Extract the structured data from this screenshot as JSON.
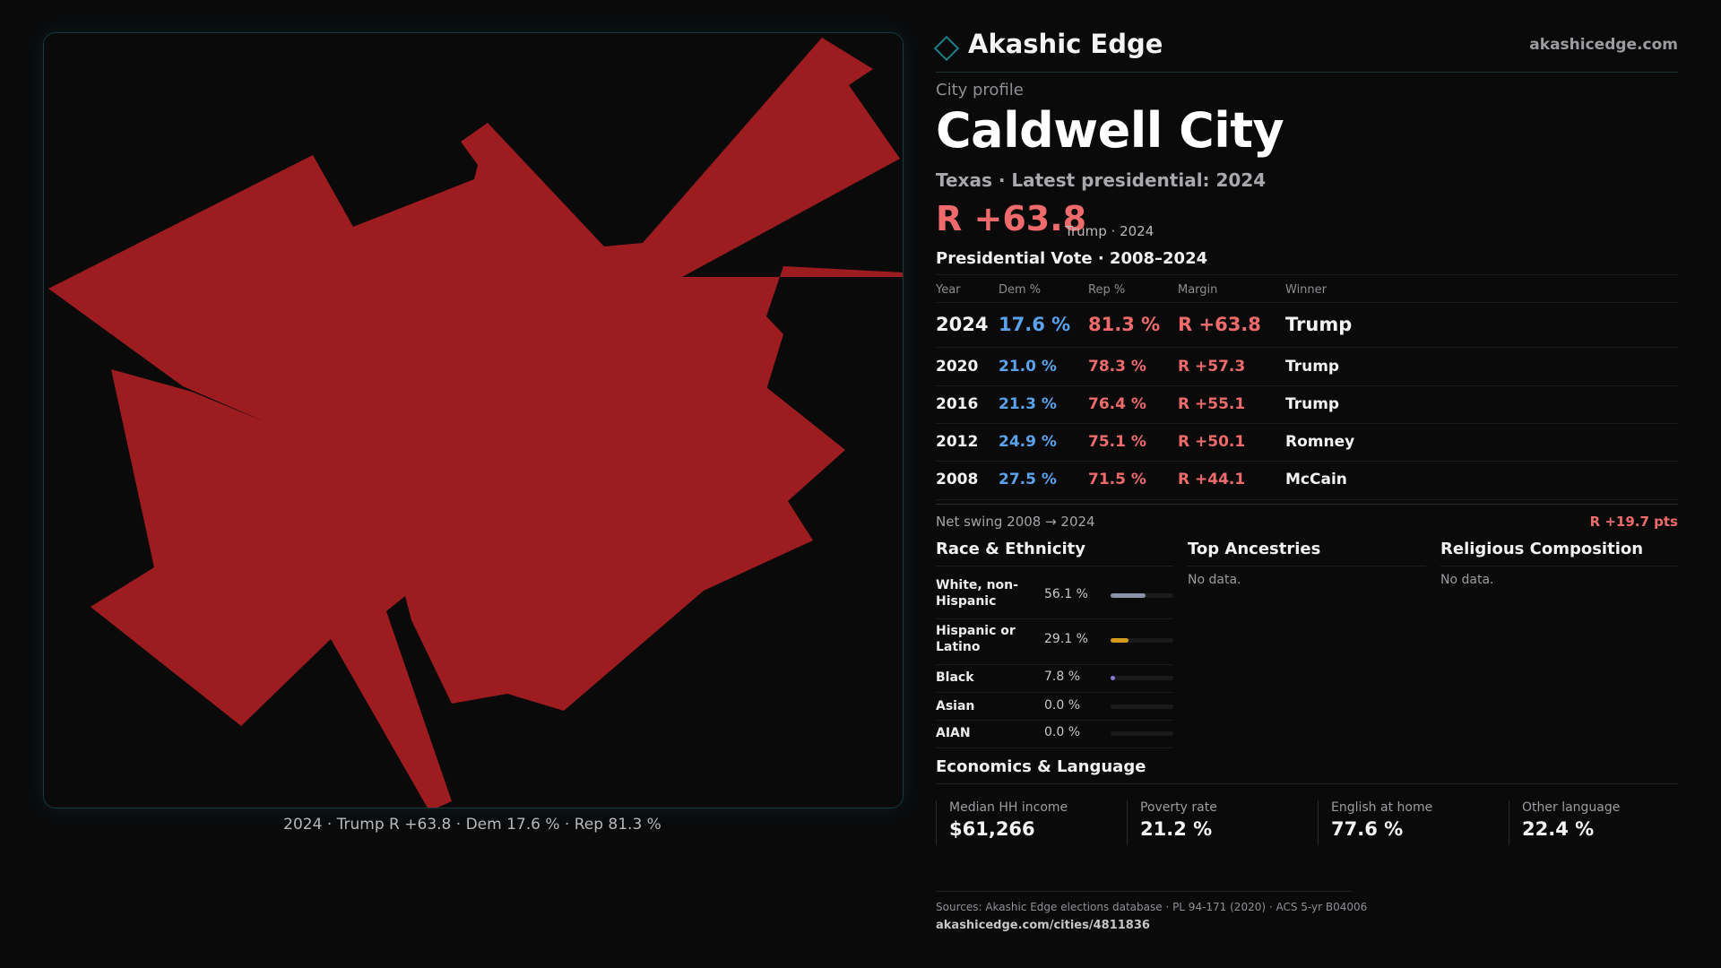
{
  "map": {
    "caption": "2024 · Trump R +63.8 · Dem 17.6 % · Rep 81.3 %",
    "fill_color": "#9c1c1f"
  },
  "brand": {
    "name": "Akashic Edge",
    "url": "akashicedge.com"
  },
  "profile": {
    "kicker": "City profile",
    "city": "Caldwell City",
    "subline": "Texas · Latest presidential: 2024",
    "margin": "R +63.8",
    "margin_note": "Trump · 2024"
  },
  "vote": {
    "title": "Presidential Vote · 2008–2024",
    "headers": {
      "year": "Year",
      "dem": "Dem %",
      "rep": "Rep %",
      "margin": "Margin",
      "winner": "Winner"
    },
    "rows": [
      {
        "year": "2024",
        "dem": "17.6 %",
        "rep": "81.3 %",
        "margin": "R +63.8",
        "winner": "Trump"
      },
      {
        "year": "2020",
        "dem": "21.0 %",
        "rep": "78.3 %",
        "margin": "R +57.3",
        "winner": "Trump"
      },
      {
        "year": "2016",
        "dem": "21.3 %",
        "rep": "76.4 %",
        "margin": "R +55.1",
        "winner": "Trump"
      },
      {
        "year": "2012",
        "dem": "24.9 %",
        "rep": "75.1 %",
        "margin": "R +50.1",
        "winner": "Romney"
      },
      {
        "year": "2008",
        "dem": "27.5 %",
        "rep": "71.5 %",
        "margin": "R +44.1",
        "winner": "McCain"
      }
    ],
    "swing_label": "Net swing 2008 → 2024",
    "swing_value": "R +19.7 pts"
  },
  "race": {
    "title": "Race & Ethnicity",
    "rows": [
      {
        "label": "White, non-Hispanic",
        "value": "56.1 %",
        "share": 0.561,
        "color": "#8a93a6"
      },
      {
        "label": "Hispanic or Latino",
        "value": "29.1 %",
        "share": 0.291,
        "color": "#d49a1a"
      },
      {
        "label": "Black",
        "value": "7.8 %",
        "share": 0.078,
        "color": "#8b7ad8"
      },
      {
        "label": "Asian",
        "value": "0.0 %",
        "share": 0.0,
        "color": "#5ba2ec"
      },
      {
        "label": "AIAN",
        "value": "0.0 %",
        "share": 0.0,
        "color": "#5ba2ec"
      }
    ]
  },
  "ancestries": {
    "title": "Top Ancestries",
    "empty": "No data."
  },
  "religion": {
    "title": "Religious Composition",
    "empty": "No data."
  },
  "economics": {
    "title": "Economics & Language",
    "stats": [
      {
        "label": "Median HH income",
        "value": "$61,266"
      },
      {
        "label": "Poverty rate",
        "value": "21.2 %"
      },
      {
        "label": "English at home",
        "value": "77.6 %"
      },
      {
        "label": "Other language",
        "value": "22.4 %"
      }
    ]
  },
  "footer": {
    "sources": "Sources: Akashic Edge elections database · PL 94-171 (2020) · ACS 5-yr B04006",
    "url": "akashicedge.com/cities/4811836"
  }
}
